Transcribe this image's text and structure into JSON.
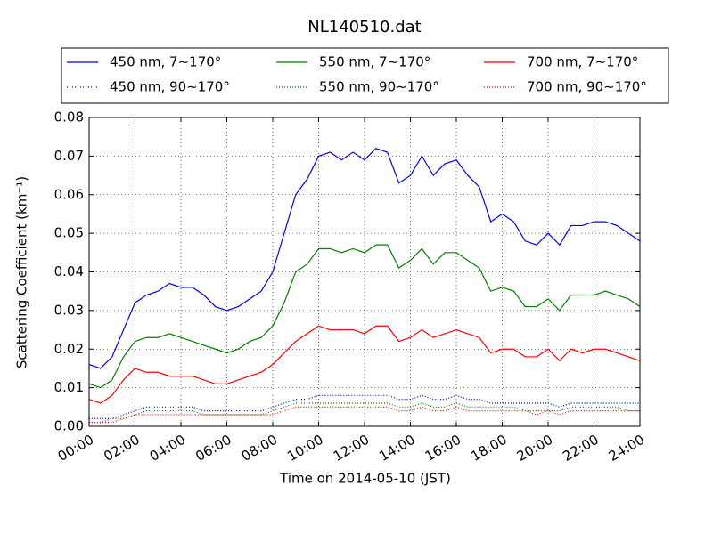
{
  "chart_data": {
    "type": "line",
    "title": "NL140510.dat",
    "xlabel": "Time on 2014-05-10 (JST)",
    "ylabel": "Scattering Coefficient (km⁻¹)",
    "x": [
      0,
      0.5,
      1,
      1.5,
      2,
      2.5,
      3,
      3.5,
      4,
      4.5,
      5,
      5.5,
      6,
      6.5,
      7,
      7.5,
      8,
      8.5,
      9,
      9.5,
      10,
      10.5,
      11,
      11.5,
      12,
      12.5,
      13,
      13.5,
      14,
      14.5,
      15,
      15.5,
      16,
      16.5,
      17,
      17.5,
      18,
      18.5,
      19,
      19.5,
      20,
      20.5,
      21,
      21.5,
      22,
      22.5,
      23,
      23.5,
      24
    ],
    "series": [
      {
        "name": "450 nm, 7∼170°",
        "color": "#0000ff",
        "style": "solid",
        "values": [
          0.016,
          0.015,
          0.018,
          0.025,
          0.032,
          0.034,
          0.035,
          0.037,
          0.036,
          0.036,
          0.034,
          0.031,
          0.03,
          0.031,
          0.033,
          0.035,
          0.04,
          0.05,
          0.06,
          0.064,
          0.07,
          0.071,
          0.069,
          0.071,
          0.069,
          0.072,
          0.071,
          0.063,
          0.065,
          0.07,
          0.065,
          0.068,
          0.069,
          0.065,
          0.062,
          0.053,
          0.055,
          0.053,
          0.048,
          0.047,
          0.05,
          0.047,
          0.052,
          0.052,
          0.053,
          0.053,
          0.052,
          0.05,
          0.048
        ]
      },
      {
        "name": "450 nm, 90∼170°",
        "color": "#0000ff",
        "style": "dotted",
        "values": [
          0.002,
          0.002,
          0.002,
          0.003,
          0.004,
          0.005,
          0.005,
          0.005,
          0.005,
          0.005,
          0.004,
          0.004,
          0.004,
          0.004,
          0.004,
          0.004,
          0.005,
          0.006,
          0.007,
          0.007,
          0.008,
          0.008,
          0.008,
          0.008,
          0.008,
          0.008,
          0.008,
          0.007,
          0.007,
          0.008,
          0.007,
          0.007,
          0.008,
          0.007,
          0.007,
          0.006,
          0.006,
          0.006,
          0.006,
          0.006,
          0.006,
          0.005,
          0.006,
          0.006,
          0.006,
          0.006,
          0.006,
          0.006,
          0.006
        ]
      },
      {
        "name": "550 nm, 7∼170°",
        "color": "#008000",
        "style": "solid",
        "values": [
          0.011,
          0.01,
          0.012,
          0.018,
          0.022,
          0.023,
          0.023,
          0.024,
          0.023,
          0.022,
          0.021,
          0.02,
          0.019,
          0.02,
          0.022,
          0.023,
          0.026,
          0.032,
          0.04,
          0.042,
          0.046,
          0.046,
          0.045,
          0.046,
          0.045,
          0.047,
          0.047,
          0.041,
          0.043,
          0.046,
          0.042,
          0.045,
          0.045,
          0.043,
          0.041,
          0.035,
          0.036,
          0.035,
          0.031,
          0.031,
          0.033,
          0.03,
          0.034,
          0.034,
          0.034,
          0.035,
          0.034,
          0.033,
          0.031
        ]
      },
      {
        "name": "550 nm, 90∼170°",
        "color": "#008000",
        "style": "dotted",
        "values": [
          0.001,
          0.001,
          0.002,
          0.002,
          0.003,
          0.004,
          0.004,
          0.004,
          0.004,
          0.004,
          0.003,
          0.003,
          0.003,
          0.003,
          0.003,
          0.003,
          0.004,
          0.005,
          0.006,
          0.006,
          0.006,
          0.006,
          0.006,
          0.006,
          0.006,
          0.006,
          0.006,
          0.005,
          0.005,
          0.006,
          0.005,
          0.005,
          0.006,
          0.005,
          0.005,
          0.005,
          0.005,
          0.005,
          0.004,
          0.004,
          0.004,
          0.004,
          0.005,
          0.005,
          0.005,
          0.005,
          0.005,
          0.004,
          0.004
        ]
      },
      {
        "name": "700 nm, 7∼170°",
        "color": "#ff0000",
        "style": "solid",
        "values": [
          0.007,
          0.006,
          0.008,
          0.012,
          0.015,
          0.014,
          0.014,
          0.013,
          0.013,
          0.013,
          0.012,
          0.011,
          0.011,
          0.012,
          0.013,
          0.014,
          0.016,
          0.019,
          0.022,
          0.024,
          0.026,
          0.025,
          0.025,
          0.025,
          0.024,
          0.026,
          0.026,
          0.022,
          0.023,
          0.025,
          0.023,
          0.024,
          0.025,
          0.024,
          0.023,
          0.019,
          0.02,
          0.02,
          0.018,
          0.018,
          0.02,
          0.017,
          0.02,
          0.019,
          0.02,
          0.02,
          0.019,
          0.018,
          0.017
        ]
      },
      {
        "name": "700 nm, 90∼170°",
        "color": "#ff0000",
        "style": "dotted",
        "values": [
          0.001,
          0.001,
          0.001,
          0.002,
          0.003,
          0.003,
          0.003,
          0.003,
          0.003,
          0.003,
          0.003,
          0.003,
          0.003,
          0.003,
          0.003,
          0.003,
          0.003,
          0.004,
          0.005,
          0.005,
          0.005,
          0.005,
          0.005,
          0.005,
          0.005,
          0.005,
          0.005,
          0.004,
          0.004,
          0.005,
          0.004,
          0.004,
          0.005,
          0.004,
          0.004,
          0.004,
          0.004,
          0.004,
          0.004,
          0.003,
          0.004,
          0.003,
          0.004,
          0.004,
          0.004,
          0.004,
          0.004,
          0.004,
          0.004
        ]
      }
    ],
    "xlim": [
      0,
      24
    ],
    "xticks": [
      {
        "value": 0,
        "label": "00:00"
      },
      {
        "value": 2,
        "label": "02:00"
      },
      {
        "value": 4,
        "label": "04:00"
      },
      {
        "value": 6,
        "label": "06:00"
      },
      {
        "value": 8,
        "label": "08:00"
      },
      {
        "value": 10,
        "label": "10:00"
      },
      {
        "value": 12,
        "label": "12:00"
      },
      {
        "value": 14,
        "label": "14:00"
      },
      {
        "value": 16,
        "label": "16:00"
      },
      {
        "value": 18,
        "label": "18:00"
      },
      {
        "value": 20,
        "label": "20:00"
      },
      {
        "value": 22,
        "label": "22:00"
      },
      {
        "value": 24,
        "label": "24:00"
      }
    ],
    "ylim": [
      0,
      0.08
    ],
    "yticks": [
      {
        "value": 0,
        "label": "0.00"
      },
      0.01,
      0.02,
      0.03,
      0.04,
      0.05,
      0.06,
      0.07,
      0.08
    ],
    "grid": true,
    "legend": "upper center"
  }
}
